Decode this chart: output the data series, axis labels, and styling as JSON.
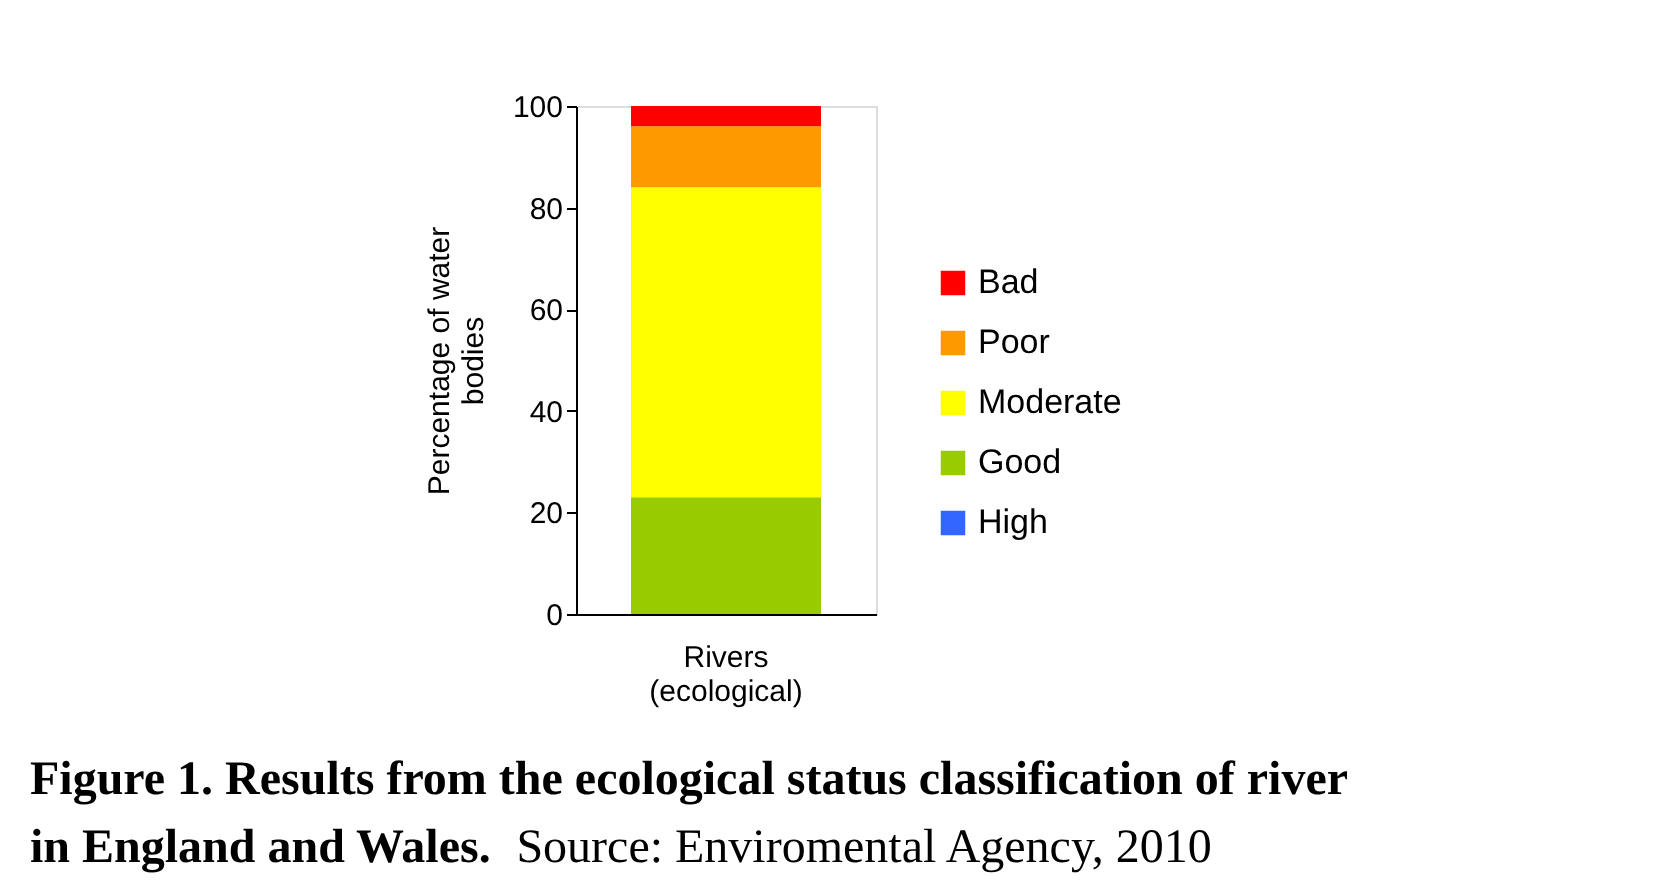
{
  "chart_data": {
    "type": "bar",
    "stacked": true,
    "ylabel": "Percentage of water bodies",
    "categories": [
      "Rivers (ecological)"
    ],
    "series": [
      {
        "name": "High",
        "color": "#3366ff",
        "values": [
          0
        ]
      },
      {
        "name": "Good",
        "color": "#99cc00",
        "values": [
          23
        ]
      },
      {
        "name": "Moderate",
        "color": "#ffff00",
        "values": [
          61
        ]
      },
      {
        "name": "Poor",
        "color": "#ff9900",
        "values": [
          12
        ]
      },
      {
        "name": "Bad",
        "color": "#ff0000",
        "values": [
          4
        ]
      }
    ],
    "ylim": [
      0,
      100
    ],
    "yticks": [
      0,
      20,
      40,
      60,
      80,
      100
    ],
    "grid": false,
    "legend": "right",
    "annotations": [
      "Figure 1. Results from the ecological status classification of river in England and Wales.",
      "Source: Enviromental Agency, 2010"
    ]
  }
}
